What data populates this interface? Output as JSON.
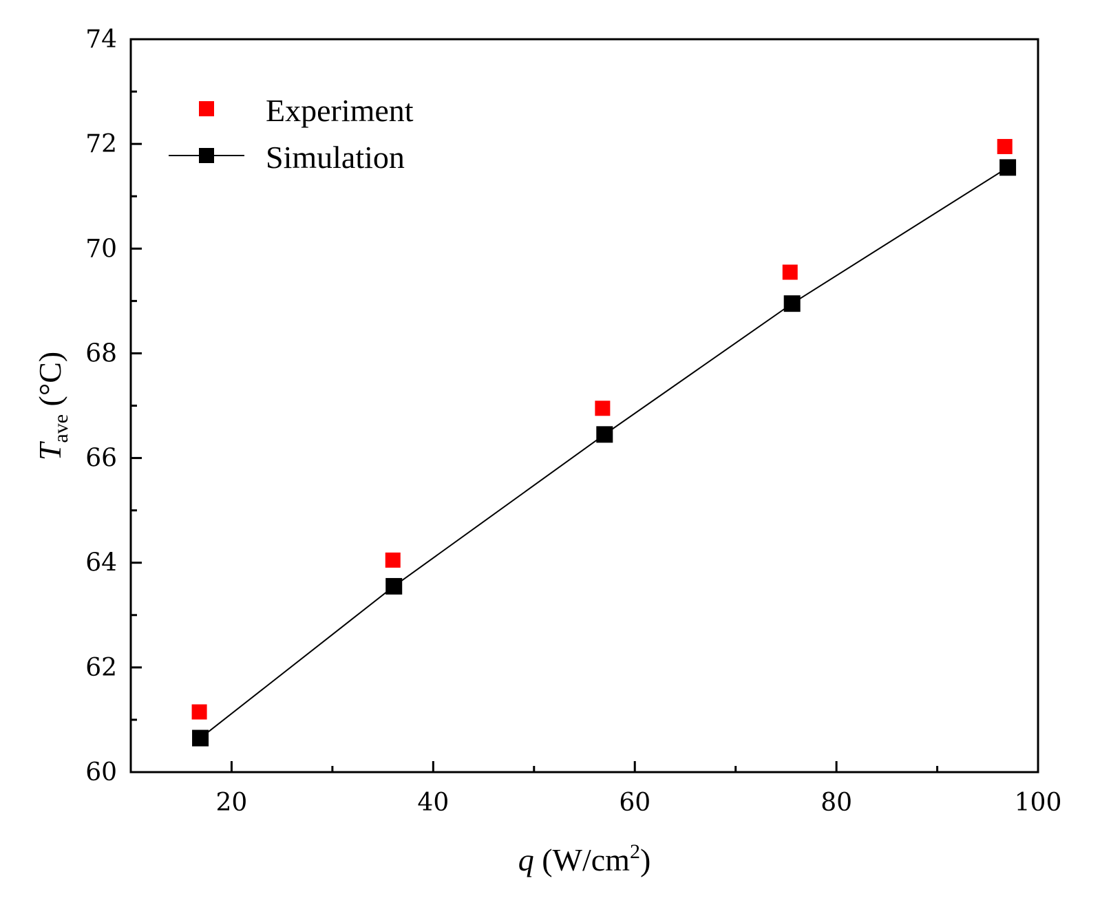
{
  "chart_data": {
    "type": "scatter",
    "x_axis": {
      "label_var": "q",
      "label_unit": " (W/cm",
      "label_sup": "2",
      "label_close": ")",
      "range": [
        10,
        100
      ],
      "major_ticks": [
        20,
        40,
        60,
        80,
        100
      ],
      "minor_ticks": [
        30,
        50,
        70,
        90
      ]
    },
    "y_axis": {
      "label_var": "T",
      "label_sub": "ave",
      "label_unit": " (°C)",
      "range": [
        60,
        74
      ],
      "major_ticks": [
        60,
        62,
        64,
        66,
        68,
        70,
        72,
        74
      ],
      "minor_ticks": [
        61,
        63,
        65,
        67,
        69,
        71,
        73
      ]
    },
    "grid": false,
    "legend_position": "top-left",
    "series": [
      {
        "name": "Experiment",
        "marker": "square",
        "color": "#ff0000",
        "line": false,
        "x": [
          16.8,
          36.0,
          56.8,
          75.4,
          96.7
        ],
        "y": [
          61.15,
          64.05,
          66.95,
          69.55,
          71.95
        ]
      },
      {
        "name": "Simulation",
        "marker": "square",
        "color": "#000000",
        "line": true,
        "x": [
          16.9,
          36.1,
          57.0,
          75.6,
          97.0
        ],
        "y": [
          60.65,
          63.55,
          66.45,
          68.95,
          71.55
        ]
      }
    ]
  }
}
